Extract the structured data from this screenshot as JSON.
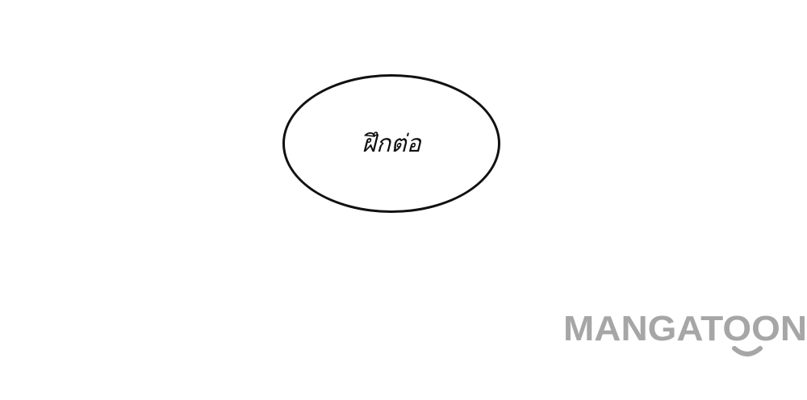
{
  "scene": {
    "background_color": "#ffffff"
  },
  "speech_bubble": {
    "text": "ฝึกต่อ",
    "border_color": "#111111",
    "text_color": "#111111"
  },
  "watermark": {
    "text": "MANGATOON",
    "color": "#a6a6a6",
    "icon": "smile-arc-icon"
  }
}
